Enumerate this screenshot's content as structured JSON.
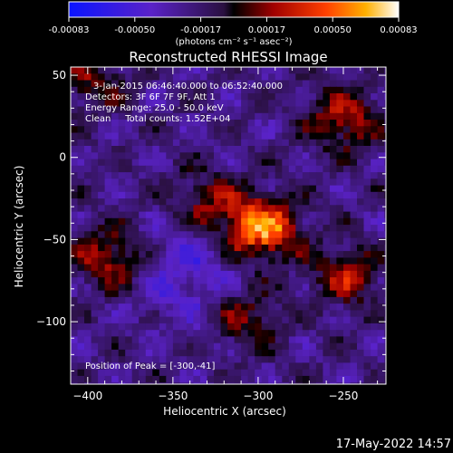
{
  "colorbar": {
    "min": -0.00083,
    "max": 0.00083,
    "tick_labels": [
      "-0.00083",
      "-0.00050",
      "-0.00017",
      "0.00017",
      "0.00050",
      "0.00083"
    ],
    "units_label": "(photons cm⁻² s⁻¹ asec⁻²)"
  },
  "chart_data": {
    "type": "heatmap",
    "title": "Reconstructed RHESSI Image",
    "xlabel": "Heliocentric X (arcsec)",
    "ylabel": "Heliocentric Y (arcsec)",
    "xlim": [
      -410,
      -225
    ],
    "ylim": [
      -138,
      55
    ],
    "x_ticks": [
      -400,
      -350,
      -300,
      -250
    ],
    "y_ticks": [
      50,
      0,
      -50,
      -100
    ],
    "annotations": [
      "3-Jan-2015 06:46:40.000 to 06:52:40.000",
      "Detectors: 3F 6F 7F 9F, Att 1",
      "Energy Range: 25.0 - 50.0 keV",
      "Clean     Total counts: 1.52E+04"
    ],
    "peak_label": "Position of Peak = [-300,-41]",
    "peak": [
      -300,
      -41
    ],
    "intensity_sources": [
      {
        "x": -300,
        "y": -41,
        "peak_value": 0.00083
      },
      {
        "x": -252,
        "y": 25,
        "peak_value": 0.00045
      },
      {
        "x": -390,
        "y": -60,
        "peak_value": 0.00045
      },
      {
        "x": -250,
        "y": -70,
        "peak_value": 0.0004
      },
      {
        "x": -330,
        "y": -25,
        "peak_value": 0.00035
      },
      {
        "x": -310,
        "y": -95,
        "peak_value": 0.00035
      },
      {
        "x": -400,
        "y": 48,
        "peak_value": 0.0003
      }
    ],
    "grid": false,
    "colormap": "IDL red-temperature with blue negatives"
  },
  "footer": {
    "timestamp": "17-May-2022 14:57"
  }
}
